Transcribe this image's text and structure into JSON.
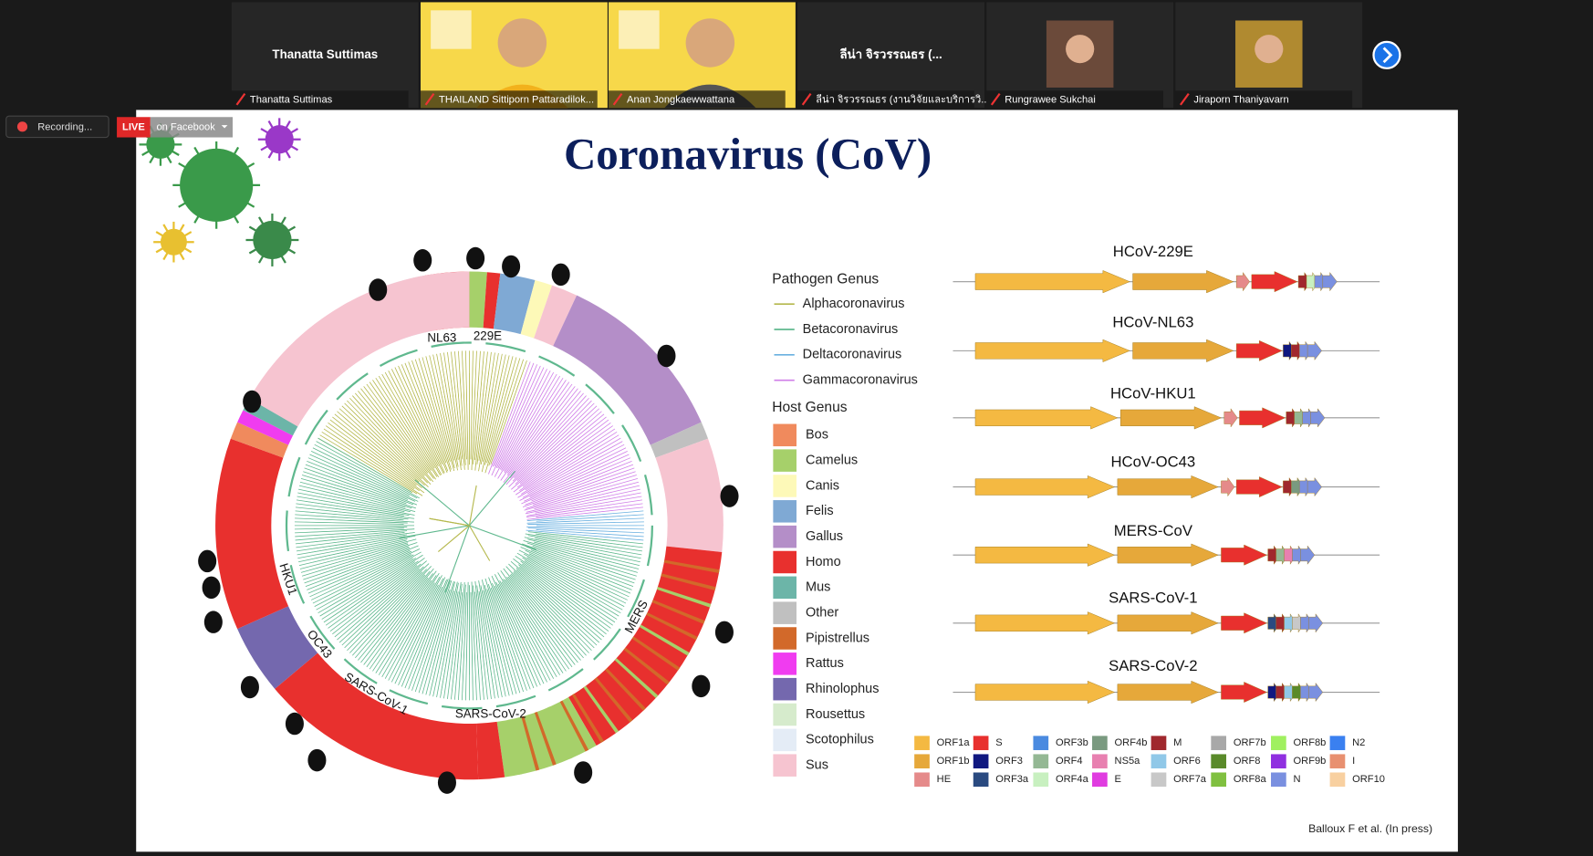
{
  "participants": [
    {
      "name": "Thanatta Suttimas",
      "label": "Thanatta Suttimas"
    },
    {
      "label": "THAILAND Sittiporn Pattaradilok..."
    },
    {
      "label": "Anan Jongkaewwattana"
    },
    {
      "name": "ลีน่า จิรวรรณธร (...",
      "label": "ลีน่า จิรวรรณธร (งานวิจัยและบริการวิ..."
    },
    {
      "label": "Rungrawee Sukchai"
    },
    {
      "label": "Jiraporn Thaniyavarn"
    }
  ],
  "recording": {
    "status": "Recording...",
    "live": "LIVE",
    "live_target": "on Facebook"
  },
  "slide": {
    "title": "Coronavirus (CoV)",
    "tree_labels": [
      "NL63",
      "229E",
      "HKU1",
      "OC43",
      "SARS-CoV-1",
      "SARS-CoV-2",
      "MERS"
    ],
    "pathogen_legend": {
      "title": "Pathogen Genus",
      "items": [
        {
          "name": "Alphacoronavirus",
          "color": "#b5b84c"
        },
        {
          "name": "Betacoronavirus",
          "color": "#5fb88e"
        },
        {
          "name": "Deltacoronavirus",
          "color": "#6ab0e0"
        },
        {
          "name": "Gammacoronavirus",
          "color": "#d07ee8"
        }
      ]
    },
    "host_legend": {
      "title": "Host Genus",
      "items": [
        {
          "name": "Bos",
          "color": "#f08a5d"
        },
        {
          "name": "Camelus",
          "color": "#a6d06a"
        },
        {
          "name": "Canis",
          "color": "#fdf9b8"
        },
        {
          "name": "Felis",
          "color": "#7fa9d4"
        },
        {
          "name": "Gallus",
          "color": "#b48ec8"
        },
        {
          "name": "Homo",
          "color": "#e8302e"
        },
        {
          "name": "Mus",
          "color": "#6cb5a8"
        },
        {
          "name": "Other",
          "color": "#c0c0c0"
        },
        {
          "name": "Pipistrellus",
          "color": "#d2692a"
        },
        {
          "name": "Rattus",
          "color": "#f03cf0"
        },
        {
          "name": "Rhinolophus",
          "color": "#7468ae"
        },
        {
          "name": "Rousettus",
          "color": "#d6ebcc"
        },
        {
          "name": "Scotophilus",
          "color": "#e4ecf6"
        },
        {
          "name": "Sus",
          "color": "#f6c4d0"
        }
      ]
    },
    "genomes": [
      "HCoV-229E",
      "HCoV-NL63",
      "HCoV-HKU1",
      "HCoV-OC43",
      "MERS-CoV",
      "SARS-CoV-1",
      "SARS-CoV-2"
    ],
    "orf_legend": [
      {
        "name": "ORF1a",
        "color": "#f4b942"
      },
      {
        "name": "ORF1b",
        "color": "#e6a83a"
      },
      {
        "name": "HE",
        "color": "#e58a8a"
      },
      {
        "name": "S",
        "color": "#e8302e"
      },
      {
        "name": "ORF3",
        "color": "#101880"
      },
      {
        "name": "ORF3a",
        "color": "#2a4a80"
      },
      {
        "name": "ORF3b",
        "color": "#4a8ae0"
      },
      {
        "name": "ORF4",
        "color": "#94b894"
      },
      {
        "name": "ORF4a",
        "color": "#c8f0c0"
      },
      {
        "name": "ORF4b",
        "color": "#7a9a80"
      },
      {
        "name": "NS5a",
        "color": "#e880b0"
      },
      {
        "name": "E",
        "color": "#e03ce0"
      },
      {
        "name": "M",
        "color": "#a0282e"
      },
      {
        "name": "ORF6",
        "color": "#90c8e8"
      },
      {
        "name": "ORF7a",
        "color": "#c8c8c8"
      },
      {
        "name": "ORF7b",
        "color": "#a8a8a8"
      },
      {
        "name": "ORF8",
        "color": "#5a8a2a"
      },
      {
        "name": "ORF8a",
        "color": "#80c040"
      },
      {
        "name": "ORF8b",
        "color": "#a0f060"
      },
      {
        "name": "ORF9b",
        "color": "#9030e0"
      },
      {
        "name": "N",
        "color": "#7a90e0"
      },
      {
        "name": "N2",
        "color": "#3a80f0"
      },
      {
        "name": "I",
        "color": "#e89070"
      },
      {
        "name": "ORF10",
        "color": "#f8d0a0"
      }
    ],
    "citation": "Balloux F et al. (In press)"
  }
}
